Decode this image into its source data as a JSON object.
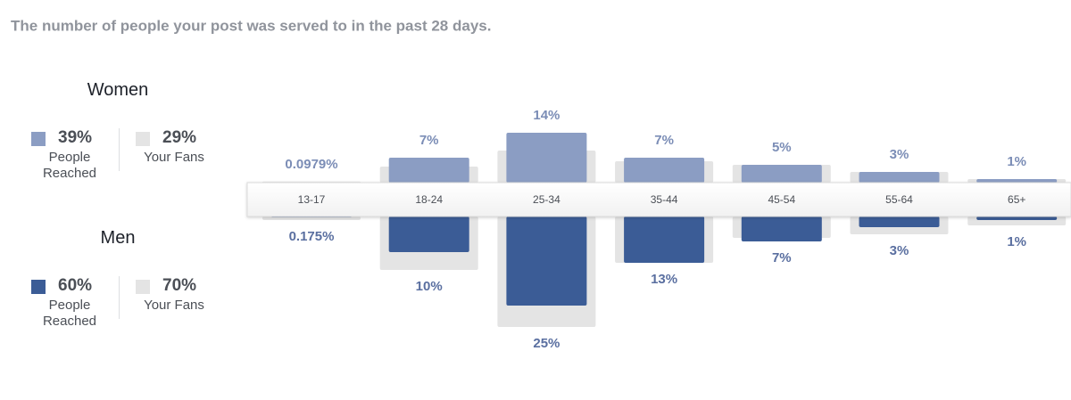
{
  "chart_data": {
    "type": "bar",
    "title": "The number of people your post was served to in the past 28 days.",
    "categories": [
      "13-17",
      "18-24",
      "25-34",
      "35-44",
      "45-54",
      "55-64",
      "65+"
    ],
    "groups": [
      {
        "name": "Women",
        "series": [
          {
            "name": "People Reached",
            "color": "#8b9dc3",
            "total": {
              "value": 39,
              "label": "39%"
            },
            "values": [
              0.0979,
              7,
              14,
              7,
              5,
              3,
              1
            ],
            "value_labels": [
              "0.0979%",
              "7%",
              "14%",
              "7%",
              "5%",
              "3%",
              "1%"
            ]
          },
          {
            "name": "Your Fans",
            "color": "#e4e4e4",
            "total": {
              "value": 29,
              "label": "29%"
            },
            "values": [
              0.3,
              4.5,
              9,
              6,
              5,
              3,
              1
            ]
          }
        ]
      },
      {
        "name": "Men",
        "series": [
          {
            "name": "People Reached",
            "color": "#3b5c96",
            "total": {
              "value": 60,
              "label": "60%"
            },
            "values": [
              0.175,
              10,
              25,
              13,
              7,
              3,
              1
            ],
            "value_labels": [
              "0.175%",
              "10%",
              "25%",
              "13%",
              "7%",
              "3%",
              "1%"
            ]
          },
          {
            "name": "Your Fans",
            "color": "#e4e4e4",
            "total": {
              "value": 70,
              "label": "70%"
            },
            "values": [
              1,
              15,
              31,
              13,
              6,
              5,
              2.5
            ]
          }
        ]
      }
    ]
  }
}
